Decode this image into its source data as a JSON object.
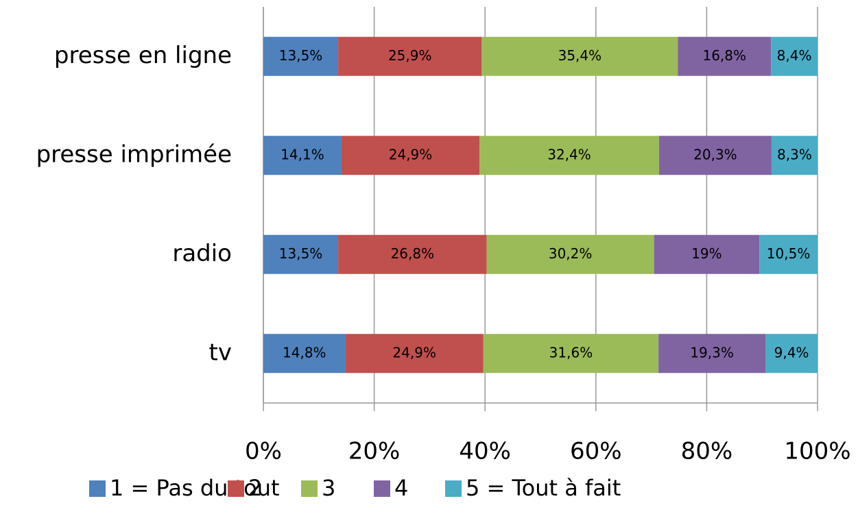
{
  "chart_data": {
    "type": "stacked_bar_horizontal",
    "categories": [
      "presse en ligne",
      "presse imprimée",
      "radio",
      "tv"
    ],
    "series": [
      {
        "name": "1 = Pas du tout",
        "color": "#4f81bd",
        "values": [
          13.5,
          14.1,
          13.5,
          14.8
        ],
        "value_labels": [
          "13,5%",
          "14,1%",
          "13,5%",
          "14,8%"
        ]
      },
      {
        "name": "2",
        "color": "#c0504d",
        "values": [
          25.9,
          24.9,
          26.8,
          24.9
        ],
        "value_labels": [
          "25,9%",
          "24,9%",
          "26,8%",
          "24,9%"
        ]
      },
      {
        "name": "3",
        "color": "#9bbb59",
        "values": [
          35.4,
          32.4,
          30.2,
          31.6
        ],
        "value_labels": [
          "35,4%",
          "32,4%",
          "30,2%",
          "31,6%"
        ]
      },
      {
        "name": "4",
        "color": "#8064a2",
        "values": [
          16.8,
          20.3,
          19,
          19.3
        ],
        "value_labels": [
          "16,8%",
          "20,3%",
          "19%",
          "19,3%"
        ]
      },
      {
        "name": "5 = Tout à fait",
        "color": "#4bacc6",
        "values": [
          8.4,
          8.3,
          10.5,
          9.4
        ],
        "value_labels": [
          "8,4%",
          "8,3%",
          "10,5%",
          "9,4%"
        ]
      }
    ],
    "xlim": [
      0,
      100
    ],
    "xticks": [
      {
        "value": 0,
        "label": "0%"
      },
      {
        "value": 20,
        "label": "20%"
      },
      {
        "value": 40,
        "label": "40%"
      },
      {
        "value": 60,
        "label": "60%"
      },
      {
        "value": 80,
        "label": "80%"
      },
      {
        "value": 100,
        "label": "100%"
      }
    ],
    "grid": true,
    "legend": "bottom"
  }
}
